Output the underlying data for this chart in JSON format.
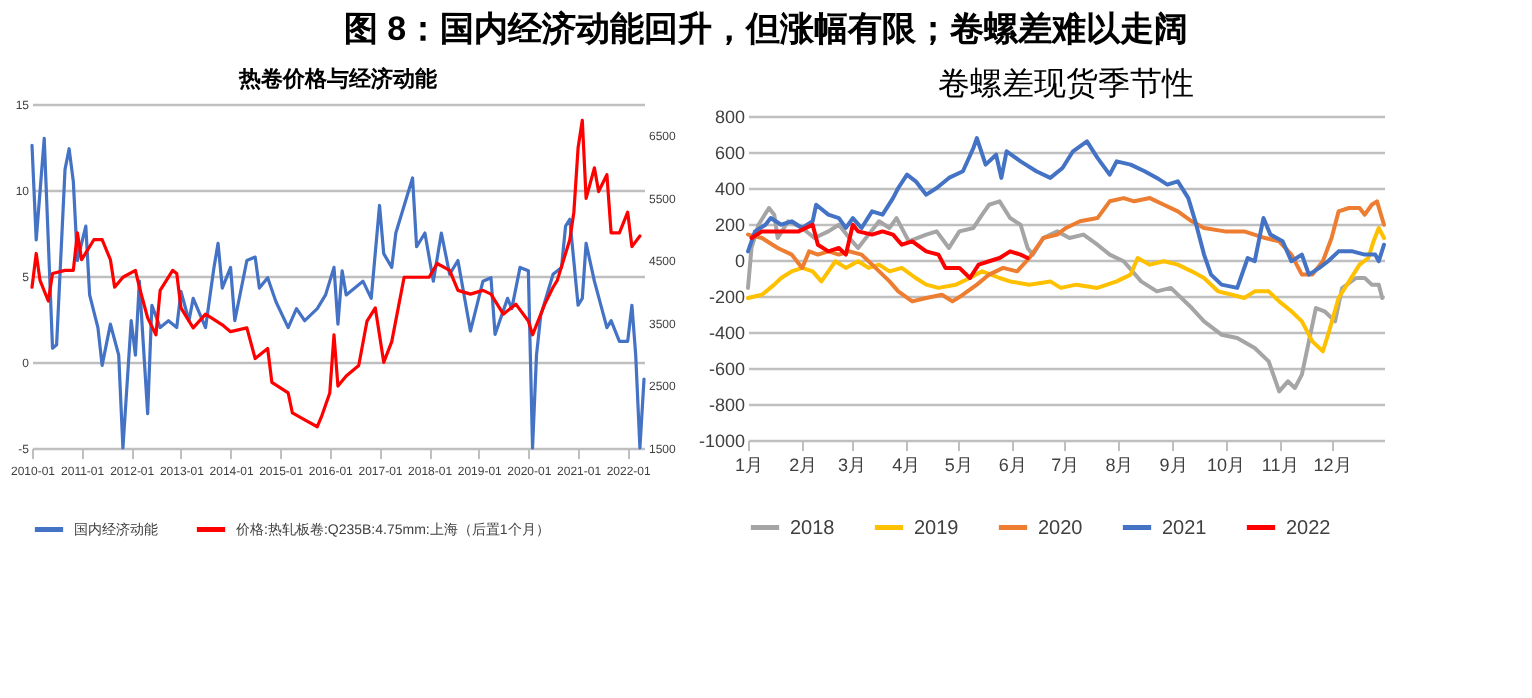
{
  "chart_data": [
    {
      "type": "line",
      "title": "热卷价格与经济动能",
      "annotations": [
        "图 8：国内经济动能回升，但涨幅有限；卷螺差难以走阔"
      ],
      "xlim": [
        "2010-01",
        "2022-05"
      ],
      "xticks": [
        "2010-01",
        "2011-01",
        "2012-01",
        "2013-01",
        "2014-01",
        "2015-01",
        "2016-01",
        "2017-01",
        "2018-01",
        "2019-01",
        "2020-01",
        "2021-01",
        "2022-01"
      ],
      "ylim": [
        -5,
        15
      ],
      "yticks": [
        -5,
        0,
        5,
        10,
        15
      ],
      "y2lim": [
        1500,
        7000
      ],
      "y2ticks": [
        1500,
        2500,
        3500,
        4500,
        5500,
        6500
      ],
      "grid": "y",
      "legend": "bottom",
      "series": [
        {
          "name": "国内经济动能",
          "color": "#4472c4",
          "x": [
            "2010-01",
            "2010-02",
            "2010-04",
            "2010-06",
            "2010-07",
            "2010-09",
            "2010-10",
            "2010-11",
            "2010-12",
            "2011-02",
            "2011-03",
            "2011-05",
            "2011-06",
            "2011-08",
            "2011-10",
            "2011-11",
            "2012-01",
            "2012-02",
            "2012-03",
            "2012-05",
            "2012-06",
            "2012-08",
            "2012-10",
            "2012-12",
            "2013-01",
            "2013-03",
            "2013-04",
            "2013-07",
            "2013-09",
            "2013-10",
            "2013-11",
            "2014-01",
            "2014-02",
            "2014-05",
            "2014-07",
            "2014-08",
            "2014-10",
            "2014-12",
            "2015-03",
            "2015-05",
            "2015-07",
            "2015-10",
            "2015-12",
            "2016-02",
            "2016-03",
            "2016-04",
            "2016-05",
            "2016-09",
            "2016-11",
            "2017-01",
            "2017-02",
            "2017-04",
            "2017-05",
            "2017-09",
            "2017-10",
            "2017-12",
            "2018-02",
            "2018-04",
            "2018-06",
            "2018-08",
            "2018-11",
            "2019-02",
            "2019-04",
            "2019-05",
            "2019-08",
            "2019-09",
            "2019-11",
            "2020-01",
            "2020-02",
            "2020-03",
            "2020-04",
            "2020-07",
            "2020-09",
            "2020-10",
            "2020-11",
            "2021-01",
            "2021-02",
            "2021-03",
            "2021-05",
            "2021-08",
            "2021-09",
            "2021-11",
            "2022-01",
            "2022-02",
            "2022-03",
            "2022-04",
            "2022-05"
          ],
          "values": [
            12.6,
            7.1,
            13.0,
            0.8,
            1.0,
            11.2,
            12.4,
            10.5,
            5.9,
            7.9,
            3.9,
            2.0,
            -0.2,
            2.2,
            0.4,
            -5,
            2.4,
            0.4,
            4.7,
            -3,
            3.3,
            2.0,
            2.4,
            2.0,
            4.1,
            2.4,
            3.7,
            2.0,
            5.5,
            6.9,
            4.3,
            5.5,
            2.4,
            5.9,
            6.1,
            4.3,
            4.9,
            3.5,
            2.0,
            3.1,
            2.4,
            3.1,
            3.9,
            5.5,
            2.2,
            5.3,
            3.9,
            4.7,
            3.7,
            9.1,
            6.3,
            5.5,
            7.5,
            10.7,
            6.7,
            7.5,
            4.7,
            7.5,
            5.1,
            5.9,
            1.8,
            4.7,
            4.9,
            1.6,
            3.7,
            3.1,
            5.5,
            5.3,
            -5,
            0.4,
            2.7,
            5.1,
            5.5,
            7.9,
            8.3,
            3.3,
            3.7,
            6.9,
            4.7,
            2.0,
            2.4,
            1.2,
            1.2,
            3.3,
            0.4,
            -5,
            -1
          ]
        },
        {
          "name": "价格:热轧板卷:Q235B:4.75mm:上海（后置1个月）",
          "color": "#ff0000",
          "axis": "y2",
          "x": [
            "2010-01",
            "2010-02",
            "2010-03",
            "2010-05",
            "2010-06",
            "2010-09",
            "2010-11",
            "2010-12",
            "2011-01",
            "2011-04",
            "2011-06",
            "2011-08",
            "2011-09",
            "2011-11",
            "2012-02",
            "2012-03",
            "2012-05",
            "2012-07",
            "2012-08",
            "2012-11",
            "2012-12",
            "2013-01",
            "2013-04",
            "2013-07",
            "2013-11",
            "2014-01",
            "2014-05",
            "2014-07",
            "2014-09",
            "2014-10",
            "2014-11",
            "2015-03",
            "2015-04",
            "2015-07",
            "2015-10",
            "2015-11",
            "2016-01",
            "2016-02",
            "2016-03",
            "2016-05",
            "2016-08",
            "2016-10",
            "2016-12",
            "2017-02",
            "2017-04",
            "2017-07",
            "2017-10",
            "2018-01",
            "2018-03",
            "2018-06",
            "2018-08",
            "2018-11",
            "2019-02",
            "2019-04",
            "2019-07",
            "2019-10",
            "2020-01",
            "2020-02",
            "2020-05",
            "2020-07",
            "2020-08",
            "2020-11",
            "2020-12",
            "2021-01",
            "2021-02",
            "2021-03",
            "2021-05",
            "2021-06",
            "2021-08",
            "2021-09",
            "2021-11",
            "2022-01",
            "2022-02",
            "2022-04"
          ],
          "values": [
            4070,
            4610,
            4180,
            3850,
            4290,
            4340,
            4340,
            4940,
            4510,
            4830,
            4830,
            4510,
            4070,
            4230,
            4340,
            4070,
            3580,
            3310,
            4020,
            4340,
            4290,
            3740,
            3420,
            3640,
            3470,
            3360,
            3420,
            2930,
            3040,
            3090,
            2550,
            2380,
            2060,
            1950,
            1840,
            2000,
            2380,
            3310,
            2490,
            2650,
            2820,
            3530,
            3740,
            2870,
            3200,
            4230,
            4230,
            4230,
            4450,
            4340,
            4020,
            3960,
            4020,
            3960,
            3640,
            3800,
            3530,
            3310,
            3800,
            4070,
            4180,
            4830,
            5270,
            6300,
            6740,
            5490,
            5980,
            5600,
            5870,
            4940,
            4940,
            5270,
            4720,
            4890
          ]
        }
      ]
    },
    {
      "type": "line",
      "title": "卷螺差现货季节性",
      "xlim": [
        "--01-01",
        "--12-31"
      ],
      "xticks": [
        {
          "value": "--01-01",
          "label": "1月"
        },
        {
          "value": "--02-01",
          "label": "2月"
        },
        {
          "value": "--03-01",
          "label": "3月"
        },
        {
          "value": "--04-01",
          "label": "4月"
        },
        {
          "value": "--05-01",
          "label": "5月"
        },
        {
          "value": "--06-01",
          "label": "6月"
        },
        {
          "value": "--07-01",
          "label": "7月"
        },
        {
          "value": "--08-01",
          "label": "8月"
        },
        {
          "value": "--09-01",
          "label": "9月"
        },
        {
          "value": "--10-01",
          "label": "10月"
        },
        {
          "value": "--11-01",
          "label": "11月"
        },
        {
          "value": "--12-01",
          "label": "12月"
        }
      ],
      "ylim": [
        -1000,
        800
      ],
      "yticks": [
        -1000,
        -800,
        -600,
        -400,
        -200,
        0,
        200,
        400,
        600,
        800
      ],
      "grid": "y",
      "legend": "bottom",
      "series": [
        {
          "name": "2018",
          "color": "#a5a5a5",
          "x": [
            "--01-01",
            "--01-03",
            "--01-07",
            "--01-13",
            "--01-16",
            "--01-18",
            "--01-24",
            "--02-01",
            "--02-08",
            "--02-16",
            "--02-22",
            "--02-28",
            "--03-05",
            "--03-11",
            "--03-17",
            "--03-23",
            "--03-27",
            "--04-03",
            "--04-13",
            "--04-19",
            "--04-26",
            "--05-02",
            "--05-10",
            "--05-15",
            "--05-19",
            "--05-25",
            "--05-31",
            "--06-06",
            "--06-10",
            "--06-13",
            "--06-19",
            "--06-27",
            "--07-04",
            "--07-12",
            "--07-20",
            "--07-27",
            "--08-04",
            "--08-14",
            "--08-23",
            "--08-31",
            "--09-12",
            "--09-19",
            "--09-29",
            "--10-08",
            "--10-18",
            "--10-26",
            "--11-01",
            "--11-06",
            "--11-10",
            "--11-14",
            "--11-18",
            "--11-22",
            "--11-27",
            "--12-03",
            "--12-07",
            "--12-15",
            "--12-20",
            "--12-24",
            "--12-28",
            "--12-30"
          ],
          "values": [
            -155,
            67,
            196,
            289,
            252,
            122,
            215,
            178,
            122,
            159,
            196,
            122,
            67,
            141,
            215,
            178,
            233,
            104,
            141,
            159,
            67,
            159,
            178,
            252,
            307,
            326,
            233,
            196,
            67,
            30,
            122,
            159,
            122,
            141,
            85,
            30,
            -7,
            -119,
            -174,
            -155,
            -267,
            -341,
            -415,
            -433,
            -489,
            -563,
            -730,
            -674,
            -711,
            -637,
            -452,
            -267,
            -285,
            -341,
            -156,
            -100,
            -100,
            -137,
            -137,
            -211
          ]
        },
        {
          "name": "2019",
          "color": "#ffc000",
          "x": [
            "--01-01",
            "--01-09",
            "--01-16",
            "--01-20",
            "--01-26",
            "--02-01",
            "--02-07",
            "--02-12",
            "--02-16",
            "--02-20",
            "--02-26",
            "--03-05",
            "--03-11",
            "--03-17",
            "--03-23",
            "--03-30",
            "--04-07",
            "--04-13",
            "--04-20",
            "--04-30",
            "--05-08",
            "--05-15",
            "--05-25",
            "--05-31",
            "--06-11",
            "--06-23",
            "--06-29",
            "--07-08",
            "--07-20",
            "--07-31",
            "--08-08",
            "--08-12",
            "--08-19",
            "--08-27",
            "--09-04",
            "--09-12",
            "--09-19",
            "--09-27",
            "--10-05",
            "--10-12",
            "--10-18",
            "--10-26",
            "--11-01",
            "--11-08",
            "--11-14",
            "--11-20",
            "--11-26",
            "--11-29",
            "--12-05",
            "--12-11",
            "--12-17",
            "--12-22",
            "--12-25",
            "--12-28",
            "--12-31"
          ],
          "values": [
            -211,
            -193,
            -137,
            -100,
            -63,
            -44,
            -63,
            -119,
            -63,
            -7,
            -44,
            -7,
            -44,
            -26,
            -63,
            -44,
            -100,
            -137,
            -155,
            -137,
            -100,
            -63,
            -100,
            -119,
            -137,
            -119,
            -155,
            -137,
            -155,
            -119,
            -81,
            11,
            -26,
            -7,
            -26,
            -63,
            -100,
            -174,
            -193,
            -211,
            -174,
            -174,
            -230,
            -285,
            -341,
            -452,
            -507,
            -415,
            -211,
            -119,
            -26,
            11,
            104,
            178,
            122
          ]
        },
        {
          "name": "2020",
          "color": "#ed7d31",
          "x": [
            "--01-01",
            "--01-09",
            "--01-18",
            "--01-26",
            "--02-01",
            "--02-05",
            "--02-10",
            "--02-16",
            "--02-22",
            "--02-28",
            "--03-07",
            "--03-15",
            "--03-23",
            "--03-28",
            "--04-05",
            "--04-13",
            "--04-22",
            "--04-28",
            "--05-04",
            "--05-12",
            "--05-19",
            "--05-27",
            "--06-04",
            "--06-11",
            "--06-19",
            "--06-27",
            "--07-02",
            "--07-10",
            "--07-20",
            "--07-27",
            "--08-04",
            "--08-10",
            "--08-19",
            "--08-27",
            "--09-04",
            "--09-12",
            "--09-19",
            "--10-01",
            "--10-12",
            "--10-24",
            "--11-01",
            "--11-08",
            "--11-14",
            "--11-20",
            "--11-26",
            "--12-01",
            "--12-05",
            "--12-11",
            "--12-17",
            "--12-20",
            "--12-24",
            "--12-27",
            "--12-31"
          ],
          "values": [
            141,
            122,
            67,
            30,
            -44,
            48,
            30,
            48,
            30,
            48,
            30,
            -44,
            -119,
            -174,
            -230,
            -211,
            -193,
            -230,
            -193,
            -137,
            -81,
            -44,
            -63,
            11,
            122,
            141,
            178,
            215,
            233,
            326,
            344,
            326,
            344,
            307,
            270,
            215,
            178,
            159,
            159,
            122,
            104,
            30,
            -81,
            -81,
            -7,
            122,
            270,
            289,
            289,
            252,
            307,
            326,
            196
          ]
        },
        {
          "name": "2021",
          "color": "#4472c4",
          "x": [
            "--01-01",
            "--01-05",
            "--01-11",
            "--01-14",
            "--01-20",
            "--01-26",
            "--02-01",
            "--02-07",
            "--02-09",
            "--02-16",
            "--02-22",
            "--02-26",
            "--03-02",
            "--03-07",
            "--03-13",
            "--03-19",
            "--03-25",
            "--03-28",
            "--04-02",
            "--04-07",
            "--04-13",
            "--04-19",
            "--04-26",
            "--05-04",
            "--05-10",
            "--05-12",
            "--05-17",
            "--05-23",
            "--05-26",
            "--05-29",
            "--06-06",
            "--06-15",
            "--06-23",
            "--06-30",
            "--07-06",
            "--07-14",
            "--07-20",
            "--07-27",
            "--07-31",
            "--08-08",
            "--08-16",
            "--08-23",
            "--08-29",
            "--09-04",
            "--09-10",
            "--09-14",
            "--09-19",
            "--09-23",
            "--09-29",
            "--10-08",
            "--10-14",
            "--10-18",
            "--10-23",
            "--10-27",
            "--11-03",
            "--11-08",
            "--11-14",
            "--11-18",
            "--11-24",
            "--11-29",
            "--12-05",
            "--12-13",
            "--12-20",
            "--12-26",
            "--12-28",
            "--12-31"
          ],
          "values": [
            48,
            159,
            196,
            233,
            196,
            215,
            178,
            215,
            307,
            252,
            233,
            178,
            233,
            178,
            270,
            252,
            344,
            400,
            474,
            437,
            363,
            400,
            456,
            493,
            622,
            677,
            530,
            585,
            456,
            604,
            548,
            493,
            456,
            511,
            604,
            659,
            567,
            474,
            548,
            530,
            493,
            456,
            419,
            437,
            344,
            215,
            30,
            -81,
            -137,
            -155,
            11,
            -7,
            233,
            141,
            104,
            -7,
            30,
            -81,
            -44,
            -7,
            48,
            48,
            30,
            30,
            -7,
            85
          ]
        },
        {
          "name": "2022",
          "color": "#ff0000",
          "x": [
            "--01-03",
            "--01-09",
            "--01-16",
            "--01-24",
            "--01-30",
            "--02-07",
            "--02-10",
            "--02-16",
            "--02-22",
            "--02-26",
            "--03-02",
            "--03-05",
            "--03-13",
            "--03-19",
            "--03-25",
            "--03-30",
            "--04-05",
            "--04-13",
            "--04-20",
            "--04-24",
            "--05-02",
            "--05-08",
            "--05-13",
            "--05-19",
            "--05-25",
            "--05-31",
            "--06-06",
            "--06-10"
          ],
          "values": [
            122,
            159,
            159,
            159,
            159,
            196,
            85,
            48,
            67,
            30,
            196,
            159,
            141,
            159,
            141,
            85,
            104,
            48,
            30,
            -44,
            -44,
            -100,
            -26,
            -7,
            11,
            48,
            30,
            11
          ]
        }
      ]
    }
  ]
}
